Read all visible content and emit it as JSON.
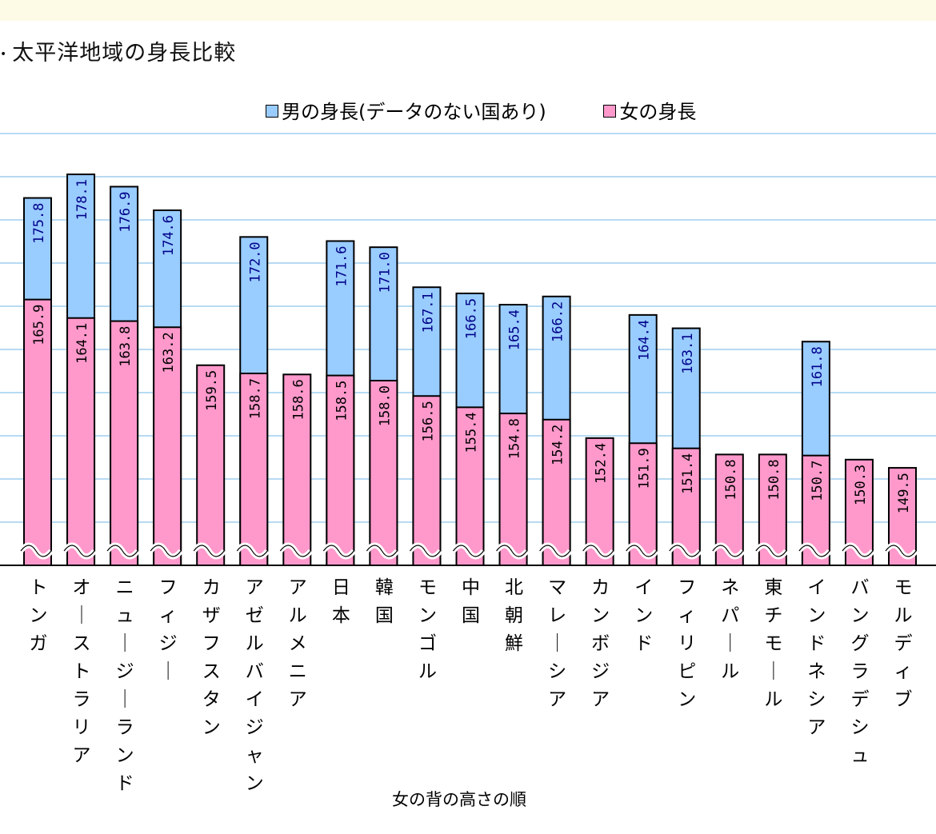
{
  "chart_data": {
    "type": "bar",
    "title": "太平洋地域の身長比較",
    "xlabel": "女の背の高さの順",
    "ylabel": "",
    "ylim": [
      140,
      182
    ],
    "legend_position": "top-right",
    "grid": true,
    "categories": [
      "トンガ",
      "オーストラリア",
      "ニュージーランド",
      "フィジー",
      "カザフスタン",
      "アゼルバイジャン",
      "アルメニア",
      "日本",
      "韓国",
      "モンゴル",
      "中国",
      "北朝鮮",
      "マレーシア",
      "カンボジア",
      "インド",
      "フィリピン",
      "ネパール",
      "東チモール",
      "インドネシア",
      "バングラデシュ",
      "モルディブ"
    ],
    "series": [
      {
        "name": "男の身長(データのない国あり)",
        "color": "#99ccff",
        "values": [
          175.8,
          178.1,
          176.9,
          174.6,
          null,
          172.0,
          null,
          171.6,
          171.0,
          167.1,
          166.5,
          165.4,
          166.2,
          null,
          164.4,
          163.1,
          null,
          null,
          161.8,
          null,
          null
        ],
        "labels": [
          "175.8",
          "178.1",
          "176.9",
          "174.6",
          "",
          "172.0",
          "",
          "171.6",
          "171.0",
          "167.1",
          "166.5",
          "165.4",
          "166.2",
          "",
          "164.4",
          "163.1",
          "",
          "",
          "161.8",
          "",
          ""
        ]
      },
      {
        "name": "女の身長",
        "color": "#ff99cc",
        "values": [
          165.9,
          164.1,
          163.8,
          163.2,
          159.5,
          158.7,
          158.6,
          158.5,
          158.0,
          156.5,
          155.4,
          154.8,
          154.2,
          152.4,
          151.9,
          151.4,
          150.8,
          150.8,
          150.7,
          150.3,
          149.5
        ],
        "labels": [
          "165.9",
          "164.1",
          "163.8",
          "163.2",
          "159.5",
          "158.7",
          "158.6",
          "158.5",
          "158.0",
          "156.5",
          "155.4",
          "154.8",
          "154.2",
          "152.4",
          "151.9",
          "151.4",
          "150.8",
          "150.8",
          "150.7",
          "150.3",
          "149.5"
        ]
      }
    ]
  }
}
